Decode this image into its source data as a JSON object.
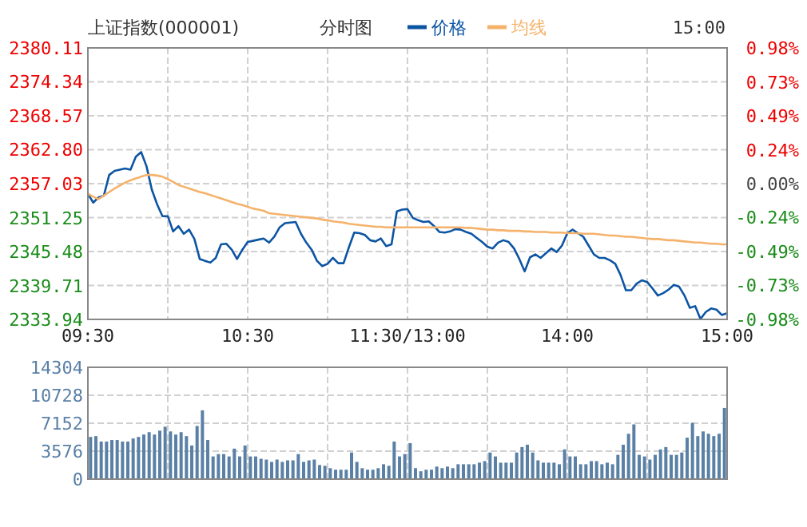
{
  "chart_data": [
    {
      "type": "line",
      "title": "上证指数(000001)",
      "subtitle": "分时图",
      "annotations": [
        "15:00"
      ],
      "legend": "top",
      "grid": true,
      "categories": [
        "09:30",
        null,
        null,
        null,
        null,
        null,
        null,
        null,
        null,
        null,
        null,
        null,
        null,
        null,
        null,
        null,
        null,
        null,
        null,
        null,
        null,
        null,
        null,
        null,
        null,
        null,
        null,
        null,
        null,
        null,
        "10:30",
        null,
        null,
        null,
        null,
        null,
        null,
        null,
        null,
        null,
        null,
        null,
        null,
        null,
        null,
        null,
        null,
        null,
        null,
        null,
        null,
        null,
        null,
        null,
        null,
        null,
        null,
        null,
        null,
        null,
        "11:30/13:00",
        null,
        null,
        null,
        null,
        null,
        null,
        null,
        null,
        null,
        null,
        null,
        null,
        null,
        null,
        null,
        null,
        null,
        null,
        null,
        null,
        null,
        null,
        null,
        null,
        null,
        null,
        null,
        null,
        null,
        "14:00",
        null,
        null,
        null,
        null,
        null,
        null,
        null,
        null,
        null,
        null,
        null,
        null,
        null,
        null,
        null,
        null,
        null,
        null,
        null,
        null,
        null,
        null,
        null,
        null,
        null,
        null,
        null,
        null,
        null,
        "15:00"
      ],
      "ylim": [
        2333.94,
        2380.11
      ],
      "yticks": [
        2333.94,
        2339.71,
        2345.48,
        2351.25,
        2357.03,
        {
          "value": 2362.8,
          "label": "2362.80"
        },
        2368.57,
        2374.34,
        2380.11
      ],
      "y2lim": [
        -0.98,
        0.98
      ],
      "y2ticks": [
        {
          "value": -0.98,
          "label": "-0.98%"
        },
        {
          "value": -0.73,
          "label": "-0.73%"
        },
        {
          "value": -0.49,
          "label": "-0.49%"
        },
        {
          "value": -0.24,
          "label": "-0.24%"
        },
        {
          "value": 0,
          "label": "0.00%"
        },
        {
          "value": 0.24,
          "label": "0.24%"
        },
        {
          "value": 0.49,
          "label": "0.49%"
        },
        {
          "value": 0.73,
          "label": "0.73%"
        },
        {
          "value": 0.98,
          "label": "0.98%"
        }
      ],
      "series": [
        {
          "name": "价格",
          "color": "#0d55a3",
          "values": [
            2355.3,
            2353.8,
            2354.7,
            2355.0,
            2358.5,
            2359.2,
            2359.4,
            2359.6,
            2359.4,
            2361.6,
            2362.4,
            2360.0,
            2356.0,
            2353.5,
            2351.5,
            2351.5,
            2348.9,
            2349.8,
            2348.5,
            2349.2,
            2347.6,
            2344.2,
            2343.9,
            2343.6,
            2344.4,
            2346.7,
            2346.8,
            2345.8,
            2344.2,
            2345.8,
            2347.1,
            2347.3,
            2347.5,
            2347.7,
            2347.0,
            2348.0,
            2349.6,
            2350.3,
            2350.4,
            2350.5,
            2348.5,
            2347.0,
            2345.8,
            2343.9,
            2343.0,
            2343.4,
            2344.4,
            2343.5,
            2343.5,
            2346.2,
            2348.7,
            2348.6,
            2348.3,
            2347.4,
            2347.2,
            2347.7,
            2346.4,
            2346.7,
            2352.3,
            2352.6,
            2352.7,
            2351.2,
            2350.8,
            2350.5,
            2350.6,
            2349.8,
            2348.8,
            2348.7,
            2348.9,
            2349.3,
            2349.2,
            2348.8,
            2348.5,
            2347.8,
            2347.1,
            2346.3,
            2346.0,
            2347.0,
            2347.4,
            2347.1,
            2346.0,
            2344.2,
            2342.1,
            2344.5,
            2345.0,
            2344.4,
            2345.2,
            2346.0,
            2345.4,
            2346.5,
            2348.6,
            2349.2,
            2348.6,
            2348.0,
            2346.5,
            2345.0,
            2344.4,
            2344.4,
            2344.0,
            2343.4,
            2341.5,
            2338.9,
            2338.9,
            2340.0,
            2340.6,
            2340.3,
            2339.2,
            2338.0,
            2338.4,
            2339.0,
            2339.8,
            2339.5,
            2338.0,
            2335.9,
            2336.2,
            2334.0,
            2335.2,
            2335.8,
            2335.6,
            2334.7,
            2335.0
          ]
        },
        {
          "name": "均线",
          "color": "#f5b26b",
          "values": [
            2355.3,
            2354.8,
            2354.4,
            2355.0,
            2355.6,
            2356.2,
            2356.7,
            2357.2,
            2357.6,
            2357.9,
            2358.2,
            2358.5,
            2358.5,
            2358.4,
            2358.2,
            2357.8,
            2357.3,
            2356.8,
            2356.5,
            2356.2,
            2355.9,
            2355.6,
            2355.4,
            2355.1,
            2354.8,
            2354.5,
            2354.2,
            2353.9,
            2353.6,
            2353.4,
            2353.1,
            2352.8,
            2352.6,
            2352.4,
            2352.0,
            2351.9,
            2351.8,
            2351.7,
            2351.6,
            2351.5,
            2351.4,
            2351.3,
            2351.2,
            2351.1,
            2350.9,
            2350.8,
            2350.6,
            2350.5,
            2350.4,
            2350.2,
            2350.1,
            2350.0,
            2349.9,
            2349.8,
            2349.7,
            2349.7,
            2349.6,
            2349.6,
            2349.6,
            2349.6,
            2349.6,
            2349.6,
            2349.6,
            2349.6,
            2349.6,
            2349.6,
            2349.6,
            2349.6,
            2349.6,
            2349.6,
            2349.6,
            2349.5,
            2349.5,
            2349.4,
            2349.3,
            2349.2,
            2349.2,
            2349.1,
            2349.1,
            2349.0,
            2349.0,
            2349.0,
            2348.9,
            2348.9,
            2348.8,
            2348.8,
            2348.8,
            2348.7,
            2348.7,
            2348.7,
            2348.6,
            2348.6,
            2348.6,
            2348.5,
            2348.5,
            2348.5,
            2348.4,
            2348.3,
            2348.2,
            2348.2,
            2348.1,
            2348.0,
            2348.0,
            2347.9,
            2347.8,
            2347.7,
            2347.6,
            2347.6,
            2347.5,
            2347.4,
            2347.4,
            2347.3,
            2347.2,
            2347.1,
            2347.0,
            2347.0,
            2346.9,
            2346.8,
            2346.8,
            2346.7,
            2346.7
          ]
        }
      ]
    },
    {
      "type": "bar",
      "color": "#5a80a6",
      "grid": true,
      "tick_labels": "y",
      "categories": [
        null,
        null,
        null,
        null,
        null,
        null,
        null,
        null,
        null,
        null,
        null,
        null,
        null,
        null,
        null,
        null,
        null,
        null,
        null,
        null,
        null,
        null,
        null,
        null,
        null,
        null,
        null,
        null,
        null,
        null,
        null,
        null,
        null,
        null,
        null,
        null,
        null,
        null,
        null,
        null,
        null,
        null,
        null,
        null,
        null,
        null,
        null,
        null,
        null,
        null,
        null,
        null,
        null,
        null,
        null,
        null,
        null,
        null,
        null,
        null,
        null,
        null,
        null,
        null,
        null,
        null,
        null,
        null,
        null,
        null,
        null,
        null,
        null,
        null,
        null,
        null,
        null,
        null,
        null,
        null,
        null,
        null,
        null,
        null,
        null,
        null,
        null,
        null,
        null,
        null,
        null,
        null,
        null,
        null,
        null,
        null,
        null,
        null,
        null,
        null,
        null,
        null,
        null,
        null,
        null,
        null,
        null,
        null,
        null,
        null,
        null,
        null,
        null,
        null,
        null,
        null,
        null,
        null,
        null,
        null
      ],
      "ylim": [
        0,
        14304
      ],
      "yticks": [
        0,
        3576,
        7152,
        10728,
        14304
      ],
      "values": [
        5400,
        5500,
        4800,
        4800,
        5000,
        5000,
        4800,
        4800,
        5200,
        5400,
        5700,
        6000,
        5700,
        6200,
        6700,
        6100,
        5700,
        6000,
        5500,
        4300,
        6800,
        8800,
        5000,
        2900,
        3200,
        3200,
        2900,
        3900,
        2900,
        4300,
        2900,
        2900,
        2600,
        2500,
        2200,
        2500,
        2200,
        2400,
        2400,
        3200,
        2200,
        2400,
        2500,
        1800,
        1700,
        1400,
        1200,
        1200,
        1200,
        3400,
        2200,
        1400,
        1200,
        1200,
        1400,
        1900,
        1700,
        4800,
        2900,
        3200,
        4600,
        1400,
        1000,
        1200,
        1200,
        1600,
        1400,
        1600,
        1400,
        1900,
        1900,
        1900,
        1900,
        2100,
        2300,
        3400,
        2900,
        2100,
        2100,
        2100,
        3400,
        4100,
        4400,
        3400,
        2400,
        2100,
        2100,
        2100,
        1900,
        3800,
        2900,
        2900,
        1900,
        1900,
        2300,
        2300,
        1900,
        2100,
        1900,
        3100,
        4400,
        5800,
        7000,
        3100,
        2900,
        2500,
        3100,
        3800,
        4100,
        3100,
        3100,
        3400,
        5300,
        7200,
        5500,
        6100,
        5800,
        5500,
        5800,
        9100
      ]
    }
  ]
}
